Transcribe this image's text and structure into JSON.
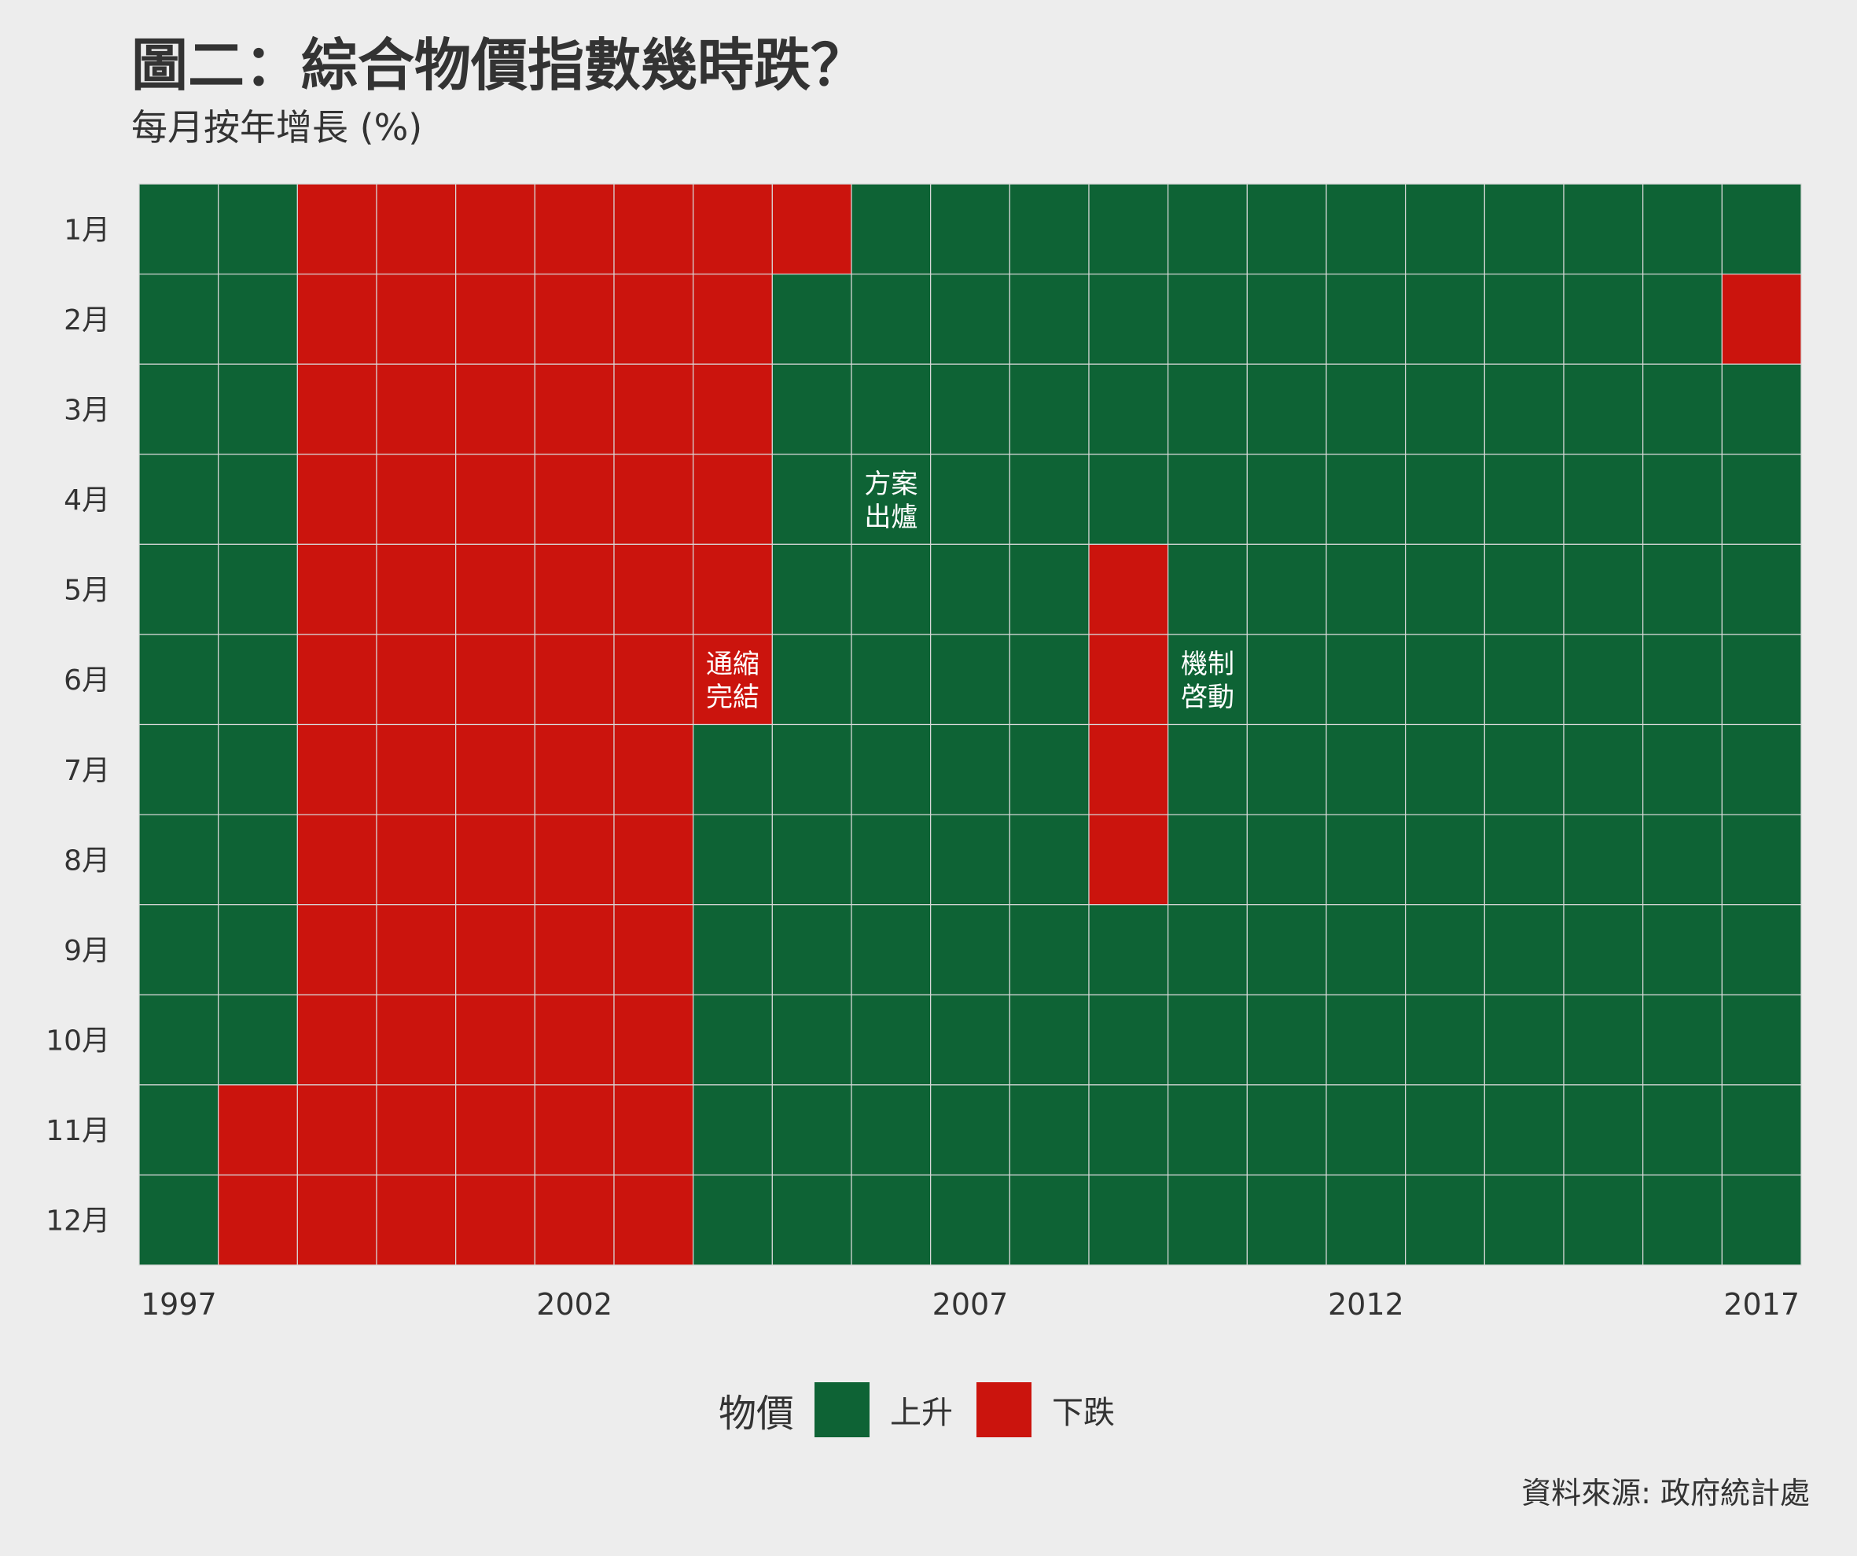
{
  "title": "圖二：綜合物價指數幾時跌？",
  "subtitle": "每月按年增長 (%)",
  "caption": "資料來源: 政府統計處",
  "colors": {
    "rise": "#0e6335",
    "fall": "#cb140d",
    "background": "#ededed",
    "grid": "#d9d9d9",
    "text": "#333333"
  },
  "legend": {
    "title": "物價",
    "items": [
      {
        "label": "上升",
        "color": "#0e6335"
      },
      {
        "label": "下跌",
        "color": "#cb140d"
      }
    ]
  },
  "chart_data": {
    "type": "heatmap",
    "title": "圖二：綜合物價指數幾時跌？",
    "subtitle": "每月按年增長 (%)",
    "x_label": "",
    "y_label": "",
    "years": [
      1997,
      1998,
      1999,
      2000,
      2001,
      2002,
      2003,
      2004,
      2005,
      2006,
      2007,
      2008,
      2009,
      2010,
      2011,
      2012,
      2013,
      2014,
      2015,
      2016,
      2017
    ],
    "months": [
      "1月",
      "2月",
      "3月",
      "4月",
      "5月",
      "6月",
      "7月",
      "8月",
      "9月",
      "10月",
      "11月",
      "12月"
    ],
    "x_ticks": [
      1997,
      2002,
      2007,
      2012,
      2017
    ],
    "categories": [
      "上升",
      "下跌"
    ],
    "values_by_year": {
      "1997": [
        "上升",
        "上升",
        "上升",
        "上升",
        "上升",
        "上升",
        "上升",
        "上升",
        "上升",
        "上升",
        "上升",
        "上升"
      ],
      "1998": [
        "上升",
        "上升",
        "上升",
        "上升",
        "上升",
        "上升",
        "上升",
        "上升",
        "上升",
        "上升",
        "下跌",
        "下跌"
      ],
      "1999": [
        "下跌",
        "下跌",
        "下跌",
        "下跌",
        "下跌",
        "下跌",
        "下跌",
        "下跌",
        "下跌",
        "下跌",
        "下跌",
        "下跌"
      ],
      "2000": [
        "下跌",
        "下跌",
        "下跌",
        "下跌",
        "下跌",
        "下跌",
        "下跌",
        "下跌",
        "下跌",
        "下跌",
        "下跌",
        "下跌"
      ],
      "2001": [
        "下跌",
        "下跌",
        "下跌",
        "下跌",
        "下跌",
        "下跌",
        "下跌",
        "下跌",
        "下跌",
        "下跌",
        "下跌",
        "下跌"
      ],
      "2002": [
        "下跌",
        "下跌",
        "下跌",
        "下跌",
        "下跌",
        "下跌",
        "下跌",
        "下跌",
        "下跌",
        "下跌",
        "下跌",
        "下跌"
      ],
      "2003": [
        "下跌",
        "下跌",
        "下跌",
        "下跌",
        "下跌",
        "下跌",
        "下跌",
        "下跌",
        "下跌",
        "下跌",
        "下跌",
        "下跌"
      ],
      "2004": [
        "下跌",
        "下跌",
        "下跌",
        "下跌",
        "下跌",
        "下跌",
        "上升",
        "上升",
        "上升",
        "上升",
        "上升",
        "上升"
      ],
      "2005": [
        "下跌",
        "上升",
        "上升",
        "上升",
        "上升",
        "上升",
        "上升",
        "上升",
        "上升",
        "上升",
        "上升",
        "上升"
      ],
      "2006": [
        "上升",
        "上升",
        "上升",
        "上升",
        "上升",
        "上升",
        "上升",
        "上升",
        "上升",
        "上升",
        "上升",
        "上升"
      ],
      "2007": [
        "上升",
        "上升",
        "上升",
        "上升",
        "上升",
        "上升",
        "上升",
        "上升",
        "上升",
        "上升",
        "上升",
        "上升"
      ],
      "2008": [
        "上升",
        "上升",
        "上升",
        "上升",
        "上升",
        "上升",
        "上升",
        "上升",
        "上升",
        "上升",
        "上升",
        "上升"
      ],
      "2009": [
        "上升",
        "上升",
        "上升",
        "上升",
        "下跌",
        "下跌",
        "下跌",
        "下跌",
        "上升",
        "上升",
        "上升",
        "上升"
      ],
      "2010": [
        "上升",
        "上升",
        "上升",
        "上升",
        "上升",
        "上升",
        "上升",
        "上升",
        "上升",
        "上升",
        "上升",
        "上升"
      ],
      "2011": [
        "上升",
        "上升",
        "上升",
        "上升",
        "上升",
        "上升",
        "上升",
        "上升",
        "上升",
        "上升",
        "上升",
        "上升"
      ],
      "2012": [
        "上升",
        "上升",
        "上升",
        "上升",
        "上升",
        "上升",
        "上升",
        "上升",
        "上升",
        "上升",
        "上升",
        "上升"
      ],
      "2013": [
        "上升",
        "上升",
        "上升",
        "上升",
        "上升",
        "上升",
        "上升",
        "上升",
        "上升",
        "上升",
        "上升",
        "上升"
      ],
      "2014": [
        "上升",
        "上升",
        "上升",
        "上升",
        "上升",
        "上升",
        "上升",
        "上升",
        "上升",
        "上升",
        "上升",
        "上升"
      ],
      "2015": [
        "上升",
        "上升",
        "上升",
        "上升",
        "上升",
        "上升",
        "上升",
        "上升",
        "上升",
        "上升",
        "上升",
        "上升"
      ],
      "2016": [
        "上升",
        "上升",
        "上升",
        "上升",
        "上升",
        "上升",
        "上升",
        "上升",
        "上升",
        "上升",
        "上升",
        "上升"
      ],
      "2017": [
        "上升",
        "下跌",
        "上升",
        "上升",
        "上升",
        "上升",
        "上升",
        "上升",
        "上升",
        "上升",
        "上升",
        "上升"
      ]
    },
    "annotations": [
      {
        "lines": [
          "方案",
          "出爐"
        ],
        "year": 2006,
        "month": "4月"
      },
      {
        "lines": [
          "通縮",
          "完結"
        ],
        "year": 2004,
        "month": "6月"
      },
      {
        "lines": [
          "機制",
          "啓動"
        ],
        "year": 2010,
        "month": "6月"
      }
    ],
    "grid": true,
    "legend_position": "bottom"
  }
}
